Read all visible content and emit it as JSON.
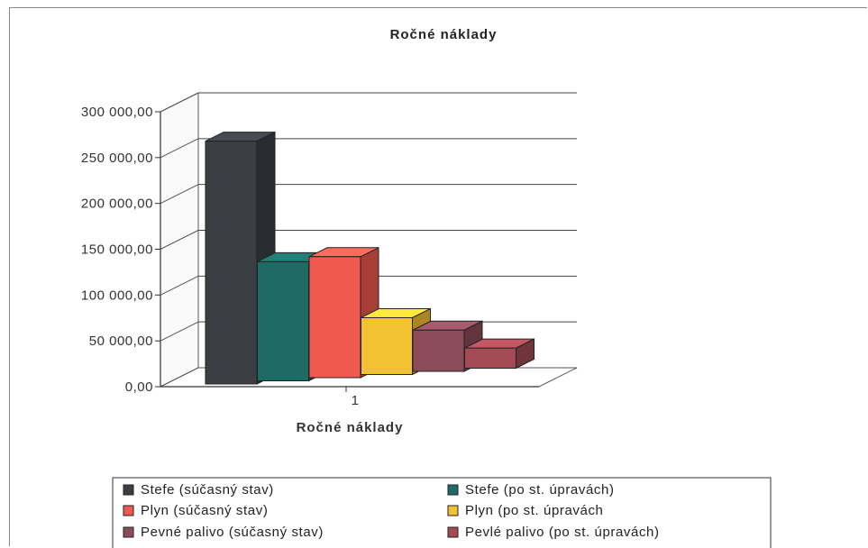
{
  "chart_data": {
    "type": "bar",
    "title": "Ročné náklady",
    "xlabel": "Ročné náklady",
    "ylabel": "",
    "categories": [
      "1"
    ],
    "ylim": [
      0,
      300000
    ],
    "yticks": [
      "0,00",
      "50 000,00",
      "100 000,00",
      "150 000,00",
      "200 000,00",
      "250 000,00",
      "300 000,00"
    ],
    "grid": true,
    "legend_position": "bottom",
    "series": [
      {
        "name": "Stefe (súčasný stav)",
        "values": [
          265000
        ],
        "color": "#3b3f44"
      },
      {
        "name": "Stefe (po st. úpravách)",
        "values": [
          130000
        ],
        "color": "#1e6a64"
      },
      {
        "name": "Plyn (súčasný stav)",
        "values": [
          132000
        ],
        "color": "#f05a4e"
      },
      {
        "name": "Plyn (po st. úpravách",
        "values": [
          62000
        ],
        "color": "#f2c232"
      },
      {
        "name": "Pevné palivo (súčasný stav)",
        "values": [
          45000
        ],
        "color": "#8c4c5a"
      },
      {
        "name": "Pevlé palivo (po st. úpravách)",
        "values": [
          22000
        ],
        "color": "#a34a55"
      }
    ]
  }
}
